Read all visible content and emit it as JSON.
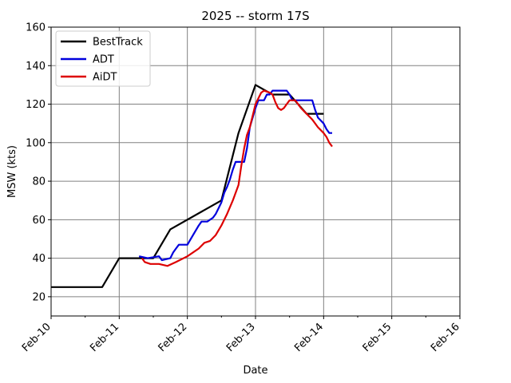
{
  "chart_data": {
    "type": "line",
    "title": "2025 -- storm 17S",
    "xlabel": "Date",
    "ylabel": "MSW (kts)",
    "x_tick_labels": [
      "Feb-10",
      "Feb-11",
      "Feb-12",
      "Feb-13",
      "Feb-14",
      "Feb-15",
      "Feb-16"
    ],
    "xlim": [
      "2025-02-10",
      "2025-02-16"
    ],
    "ylim": [
      10,
      160
    ],
    "y_ticks": [
      20,
      40,
      60,
      80,
      100,
      120,
      140,
      160
    ],
    "grid": true,
    "legend_position": "top-left",
    "series": [
      {
        "name": "BestTrack",
        "color": "#000000",
        "points": [
          [
            "2025-02-10T00:00",
            25
          ],
          [
            "2025-02-10T18:00",
            25
          ],
          [
            "2025-02-11T00:00",
            40
          ],
          [
            "2025-02-11T12:00",
            40
          ],
          [
            "2025-02-11T18:00",
            55
          ],
          [
            "2025-02-12T12:00",
            70
          ],
          [
            "2025-02-12T18:00",
            105
          ],
          [
            "2025-02-13T00:00",
            130
          ],
          [
            "2025-02-13T06:00",
            125
          ],
          [
            "2025-02-13T12:00",
            125
          ],
          [
            "2025-02-13T18:00",
            115
          ],
          [
            "2025-02-14T00:00",
            115
          ]
        ]
      },
      {
        "name": "ADT",
        "color": "#0000dd",
        "points": [
          [
            "2025-02-11T07:00",
            41
          ],
          [
            "2025-02-11T10:00",
            40
          ],
          [
            "2025-02-11T14:00",
            41
          ],
          [
            "2025-02-11T15:00",
            39
          ],
          [
            "2025-02-11T18:00",
            40
          ],
          [
            "2025-02-11T19:00",
            43
          ],
          [
            "2025-02-11T20:00",
            45
          ],
          [
            "2025-02-11T21:00",
            47
          ],
          [
            "2025-02-12T00:00",
            47
          ],
          [
            "2025-02-12T02:00",
            52
          ],
          [
            "2025-02-12T04:00",
            57
          ],
          [
            "2025-02-12T05:00",
            59
          ],
          [
            "2025-02-12T07:00",
            59
          ],
          [
            "2025-02-12T09:00",
            61
          ],
          [
            "2025-02-12T10:00",
            63
          ],
          [
            "2025-02-12T11:00",
            66
          ],
          [
            "2025-02-12T12:00",
            69
          ],
          [
            "2025-02-12T13:00",
            74
          ],
          [
            "2025-02-12T14:00",
            77
          ],
          [
            "2025-02-12T15:00",
            81
          ],
          [
            "2025-02-12T16:00",
            86
          ],
          [
            "2025-02-12T17:00",
            90
          ],
          [
            "2025-02-12T20:00",
            90
          ],
          [
            "2025-02-12T21:00",
            97
          ],
          [
            "2025-02-12T22:00",
            108
          ],
          [
            "2025-02-13T00:00",
            118
          ],
          [
            "2025-02-13T01:00",
            122
          ],
          [
            "2025-02-13T03:00",
            122
          ],
          [
            "2025-02-13T04:00",
            125
          ],
          [
            "2025-02-13T05:00",
            125
          ],
          [
            "2025-02-13T06:00",
            127
          ],
          [
            "2025-02-13T11:00",
            127
          ],
          [
            "2025-02-13T12:00",
            125
          ],
          [
            "2025-02-13T13:00",
            122
          ],
          [
            "2025-02-13T20:00",
            122
          ],
          [
            "2025-02-13T21:00",
            117
          ],
          [
            "2025-02-13T22:00",
            113
          ],
          [
            "2025-02-14T00:00",
            110
          ],
          [
            "2025-02-14T01:00",
            107
          ],
          [
            "2025-02-14T02:00",
            105
          ],
          [
            "2025-02-14T03:00",
            105
          ]
        ]
      },
      {
        "name": "AiDT",
        "color": "#dd0000",
        "points": [
          [
            "2025-02-11T08:00",
            40
          ],
          [
            "2025-02-11T09:00",
            38
          ],
          [
            "2025-02-11T11:00",
            37
          ],
          [
            "2025-02-11T14:00",
            37
          ],
          [
            "2025-02-11T17:00",
            36
          ],
          [
            "2025-02-11T20:00",
            38
          ],
          [
            "2025-02-12T00:00",
            41
          ],
          [
            "2025-02-12T04:00",
            45
          ],
          [
            "2025-02-12T06:00",
            48
          ],
          [
            "2025-02-12T08:00",
            49
          ],
          [
            "2025-02-12T10:00",
            52
          ],
          [
            "2025-02-12T12:00",
            57
          ],
          [
            "2025-02-12T14:00",
            63
          ],
          [
            "2025-02-12T16:00",
            70
          ],
          [
            "2025-02-12T18:00",
            78
          ],
          [
            "2025-02-12T19:00",
            88
          ],
          [
            "2025-02-12T20:00",
            97
          ],
          [
            "2025-02-12T21:00",
            104
          ],
          [
            "2025-02-12T22:00",
            108
          ],
          [
            "2025-02-13T00:00",
            120
          ],
          [
            "2025-02-13T02:00",
            126
          ],
          [
            "2025-02-13T03:00",
            127
          ],
          [
            "2025-02-13T05:00",
            126
          ],
          [
            "2025-02-13T06:00",
            125
          ],
          [
            "2025-02-13T07:00",
            121
          ],
          [
            "2025-02-13T08:00",
            118
          ],
          [
            "2025-02-13T09:00",
            117
          ],
          [
            "2025-02-13T10:00",
            118
          ],
          [
            "2025-02-13T11:00",
            120
          ],
          [
            "2025-02-13T12:00",
            122
          ],
          [
            "2025-02-13T14:00",
            122
          ],
          [
            "2025-02-13T16:00",
            118
          ],
          [
            "2025-02-13T18:00",
            115
          ],
          [
            "2025-02-13T20:00",
            112
          ],
          [
            "2025-02-13T22:00",
            108
          ],
          [
            "2025-02-14T00:00",
            105
          ],
          [
            "2025-02-14T01:00",
            103
          ],
          [
            "2025-02-14T02:00",
            100
          ],
          [
            "2025-02-14T03:00",
            98
          ]
        ]
      }
    ]
  }
}
